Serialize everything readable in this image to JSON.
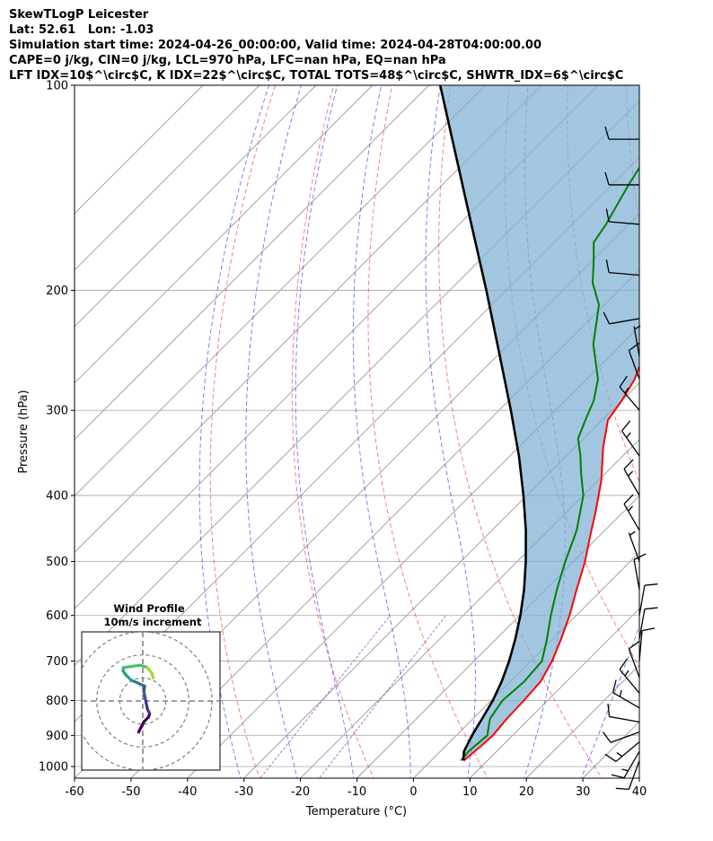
{
  "header": {
    "line1": "SkewTLogP Leicester",
    "line2": "Lat: 52.61   Lon: -1.03",
    "line3": "Simulation start time: 2024-04-26_00:00:00, Valid time: 2024-04-28T04:00:00.00",
    "line4": "CAPE=0 j/kg, CIN=0 j/kg, LCL=970 hPa, LFC=nan hPa, EQ=nan hPa",
    "line5": "LFT IDX=10$^\\circ$C, K IDX=22$^\\circ$C, TOTAL TOTS=48$^\\circ$C, SHWTR_IDX=6$^\\circ$C"
  },
  "colors": {
    "temperature": "#ff0000",
    "dewpoint": "#008000",
    "parcel": "#000000",
    "cin_cape_fill": "#7fb0d4",
    "dry_adiabat": "#ff3333",
    "moist_adiabat": "#3333ff",
    "mixing_ratio": "#9933cc",
    "isotherm": "#999999"
  },
  "chart_data": [
    {
      "type": "line",
      "title": "",
      "xlabel": "Temperature ($^\\circ$C)",
      "ylabel": "Pressure (hPa)",
      "x_scale": "linear",
      "y_scale": "log",
      "xlim": [
        -60,
        40
      ],
      "ylim": [
        1040,
        100
      ],
      "x_ticks": [
        "-60",
        "-50",
        "-40",
        "-30",
        "-20",
        "-10",
        "0",
        "10",
        "20",
        "30",
        "40"
      ],
      "y_ticks": [
        "100",
        "200",
        "300",
        "400",
        "500",
        "600",
        "700",
        "800",
        "900",
        "1000"
      ],
      "grid": true,
      "series": [
        {
          "key": "temperature",
          "pressure": [
            980,
            960,
            930,
            900,
            870,
            850,
            800,
            750,
            700,
            650,
            600,
            550,
            500,
            460,
            420,
            380,
            340,
            310,
            290,
            270,
            250,
            230,
            210,
            190,
            170,
            150,
            130,
            115,
            100
          ],
          "values": [
            5.8,
            6.0,
            6.3,
            6.5,
            6.2,
            6.0,
            5.8,
            5.4,
            3.8,
            1.5,
            -1.2,
            -4.5,
            -8.0,
            -11.5,
            -15.2,
            -19.5,
            -25.0,
            -29.0,
            -30.0,
            -31.5,
            -34.0,
            -38.5,
            -43.0,
            -48.0,
            -54.0,
            -59.0,
            -63.5,
            -67.0,
            -70.5
          ]
        },
        {
          "key": "dewpoint",
          "pressure": [
            980,
            950,
            900,
            870,
            850,
            800,
            750,
            700,
            650,
            600,
            550,
            500,
            450,
            400,
            370,
            350,
            330,
            310,
            290,
            270,
            240,
            210,
            195,
            180,
            170,
            160,
            140,
            120,
            100
          ],
          "values": [
            5.3,
            5.0,
            5.5,
            4.0,
            3.0,
            2.0,
            2.5,
            2.0,
            -1.0,
            -4.5,
            -8.0,
            -11.5,
            -15.0,
            -20.0,
            -24.5,
            -27.5,
            -31.0,
            -33.0,
            -35.0,
            -38.0,
            -45.0,
            -51.0,
            -56.0,
            -60.0,
            -63.0,
            -64.0,
            -67.0,
            -70.0,
            -74.0
          ]
        },
        {
          "key": "parcel",
          "pressure": [
            980,
            970,
            950,
            900,
            850,
            800,
            750,
            700,
            650,
            600,
            550,
            500,
            450,
            400,
            350,
            300,
            250,
            200,
            150,
            100
          ],
          "values": [
            5.8,
            5.2,
            4.2,
            2.8,
            1.6,
            0.3,
            -1.5,
            -3.8,
            -6.6,
            -9.9,
            -13.8,
            -18.5,
            -24.0,
            -30.6,
            -38.4,
            -47.9,
            -59.4,
            -73.5,
            -92.0,
            -118.0
          ]
        }
      ],
      "wind_barbs": [
        {
          "pressure": 980,
          "speed_kt": 10,
          "dir_deg": 200
        },
        {
          "pressure": 950,
          "speed_kt": 15,
          "dir_deg": 210
        },
        {
          "pressure": 920,
          "speed_kt": 15,
          "dir_deg": 230
        },
        {
          "pressure": 890,
          "speed_kt": 10,
          "dir_deg": 250
        },
        {
          "pressure": 860,
          "speed_kt": 10,
          "dir_deg": 280
        },
        {
          "pressure": 820,
          "speed_kt": 15,
          "dir_deg": 300
        },
        {
          "pressure": 780,
          "speed_kt": 15,
          "dir_deg": 320
        },
        {
          "pressure": 740,
          "speed_kt": 10,
          "dir_deg": 340
        },
        {
          "pressure": 700,
          "speed_kt": 10,
          "dir_deg": 5
        },
        {
          "pressure": 650,
          "speed_kt": 10,
          "dir_deg": 10
        },
        {
          "pressure": 600,
          "speed_kt": 10,
          "dir_deg": 10
        },
        {
          "pressure": 550,
          "speed_kt": 10,
          "dir_deg": 350
        },
        {
          "pressure": 500,
          "speed_kt": 5,
          "dir_deg": 340
        },
        {
          "pressure": 450,
          "speed_kt": 15,
          "dir_deg": 330
        },
        {
          "pressure": 400,
          "speed_kt": 15,
          "dir_deg": 330
        },
        {
          "pressure": 350,
          "speed_kt": 15,
          "dir_deg": 325
        },
        {
          "pressure": 300,
          "speed_kt": 15,
          "dir_deg": 320
        },
        {
          "pressure": 270,
          "speed_kt": 10,
          "dir_deg": 340
        },
        {
          "pressure": 250,
          "speed_kt": 5,
          "dir_deg": 350
        },
        {
          "pressure": 220,
          "speed_kt": 10,
          "dir_deg": 260
        },
        {
          "pressure": 190,
          "speed_kt": 10,
          "dir_deg": 275
        },
        {
          "pressure": 160,
          "speed_kt": 10,
          "dir_deg": 275
        },
        {
          "pressure": 140,
          "speed_kt": 10,
          "dir_deg": 270
        },
        {
          "pressure": 120,
          "speed_kt": 10,
          "dir_deg": 270
        }
      ]
    },
    {
      "type": "line",
      "title": "Wind Profile\n10m/s increment",
      "title_lines": [
        "Wind Profile",
        "10m/s increment"
      ],
      "xlim": [
        -30,
        30
      ],
      "ylim": [
        -30,
        30
      ],
      "rings": [
        10,
        20,
        30
      ],
      "grid": true,
      "points": [
        {
          "u": -1.8,
          "v": -13.5
        },
        {
          "u": 0.5,
          "v": -9.0
        },
        {
          "u": 2.5,
          "v": -7.0
        },
        {
          "u": 3.0,
          "v": -5.5
        },
        {
          "u": 2.0,
          "v": -3.5
        },
        {
          "u": 1.5,
          "v": -1.0
        },
        {
          "u": 1.0,
          "v": 1.5
        },
        {
          "u": 0.5,
          "v": 4.0
        },
        {
          "u": 0.8,
          "v": 6.5
        },
        {
          "u": -0.5,
          "v": 7.0
        },
        {
          "u": -2.5,
          "v": 8.0
        },
        {
          "u": -5.0,
          "v": 9.0
        },
        {
          "u": -7.5,
          "v": 11.5
        },
        {
          "u": -8.5,
          "v": 13.0
        },
        {
          "u": -8.5,
          "v": 14.5
        },
        {
          "u": -5.0,
          "v": 15.0
        },
        {
          "u": -1.0,
          "v": 15.5
        },
        {
          "u": 2.0,
          "v": 14.5
        },
        {
          "u": 4.0,
          "v": 12.0
        },
        {
          "u": 4.5,
          "v": 10.0
        }
      ]
    }
  ]
}
